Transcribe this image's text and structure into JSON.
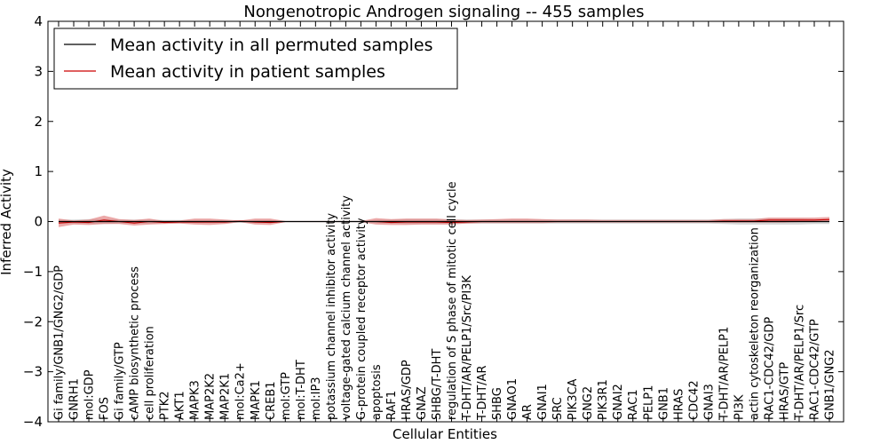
{
  "chart_data": {
    "type": "line",
    "title": "Nongenotropic Androgen signaling -- 455 samples",
    "xlabel": "Cellular Entities",
    "ylabel": "Inferred Activity",
    "ylim": [
      -4,
      4
    ],
    "yticks": [
      4,
      3,
      2,
      1,
      0,
      -1,
      -2,
      -3,
      -4
    ],
    "ytick_labels": [
      "4",
      "3",
      "2",
      "1",
      "0",
      "−1",
      "−2",
      "−3",
      "−4"
    ],
    "grid": false,
    "legend_position": "top-left",
    "categories": [
      "Gi family/GNB1/GNG2/GDP",
      "GNRH1",
      "mol:GDP",
      "FOS",
      "Gi family/GTP",
      "cAMP biosynthetic process",
      "cell proliferation",
      "PTK2",
      "AKT1",
      "MAPK3",
      "MAP2K2",
      "MAP2K1",
      "mol:Ca2+",
      "MAPK1",
      "CREB1",
      "mol:GTP",
      "mol:T-DHT",
      "mol:IP3",
      "potassium channel inhibitor activity",
      "voltage-gated calcium channel activity",
      "G-protein coupled receptor activity",
      "apoptosis",
      "RAF1",
      "HRAS/GDP",
      "GNAZ",
      "SHBG/T-DHT",
      "regulation of S phase of mitotic cell cycle",
      "T-DHT/AR/PELP1/Src/PI3K",
      "T-DHT/AR",
      "SHBG",
      "GNAO1",
      "AR",
      "GNAI1",
      "SRC",
      "PIK3CA",
      "GNG2",
      "PIK3R1",
      "GNAI2",
      "RAC1",
      "PELP1",
      "GNB1",
      "HRAS",
      "CDC42",
      "GNAI3",
      "T-DHT/AR/PELP1",
      "PI3K",
      "actin cytoskeleton reorganization",
      "RAC1-CDC42/GDP",
      "HRAS/GTP",
      "T-DHT/AR/PELP1/Src",
      "RAC1-CDC42/GTP",
      "GNB1/GNG2"
    ],
    "series": [
      {
        "name": "Mean activity in all permuted samples",
        "color": "#000000",
        "values": [
          0.0,
          0.0,
          0.0,
          0.0,
          0.0,
          0.0,
          0.0,
          0.0,
          0.0,
          0.0,
          0.0,
          0.0,
          0.0,
          0.0,
          0.0,
          0.0,
          0.0,
          0.0,
          0.0,
          0.0,
          0.0,
          0.0,
          0.0,
          0.0,
          0.0,
          0.0,
          0.0,
          0.0,
          0.0,
          0.0,
          0.0,
          0.0,
          0.0,
          0.0,
          0.0,
          0.0,
          0.0,
          0.0,
          0.0,
          0.0,
          0.0,
          0.0,
          0.0,
          0.0,
          0.0,
          0.0,
          0.0,
          0.0,
          0.0,
          0.0,
          0.0,
          0.0
        ],
        "band_lower": [
          -0.04,
          -0.04,
          -0.05,
          -0.05,
          -0.04,
          -0.04,
          -0.04,
          -0.03,
          -0.03,
          -0.03,
          -0.03,
          -0.03,
          -0.02,
          -0.03,
          -0.03,
          -0.01,
          -0.01,
          -0.01,
          -0.01,
          -0.01,
          -0.01,
          -0.03,
          -0.04,
          -0.05,
          -0.05,
          -0.05,
          -0.05,
          -0.04,
          -0.04,
          -0.04,
          -0.04,
          -0.04,
          -0.04,
          -0.04,
          -0.04,
          -0.04,
          -0.04,
          -0.04,
          -0.04,
          -0.04,
          -0.04,
          -0.04,
          -0.04,
          -0.04,
          -0.05,
          -0.06,
          -0.06,
          -0.06,
          -0.06,
          -0.06,
          -0.05,
          -0.05
        ],
        "band_upper": [
          0.04,
          0.04,
          0.05,
          0.05,
          0.04,
          0.04,
          0.04,
          0.03,
          0.03,
          0.03,
          0.03,
          0.03,
          0.02,
          0.03,
          0.03,
          0.01,
          0.01,
          0.01,
          0.01,
          0.01,
          0.01,
          0.03,
          0.04,
          0.05,
          0.05,
          0.05,
          0.05,
          0.04,
          0.04,
          0.04,
          0.04,
          0.04,
          0.04,
          0.04,
          0.04,
          0.04,
          0.04,
          0.04,
          0.04,
          0.04,
          0.04,
          0.04,
          0.04,
          0.04,
          0.05,
          0.06,
          0.06,
          0.06,
          0.06,
          0.06,
          0.05,
          0.05
        ],
        "band_color": "#bbbbbb"
      },
      {
        "name": "Mean activity in patient samples",
        "color": "#cc0000",
        "values": [
          -0.03,
          -0.01,
          -0.02,
          0.03,
          0.0,
          -0.03,
          0.0,
          -0.02,
          -0.01,
          -0.01,
          -0.01,
          -0.01,
          0.01,
          -0.01,
          -0.02,
          0.0,
          0.0,
          0.0,
          0.0,
          0.0,
          0.0,
          0.0,
          -0.02,
          -0.01,
          -0.01,
          -0.01,
          -0.02,
          -0.01,
          0.0,
          0.0,
          0.0,
          0.0,
          0.0,
          0.0,
          0.0,
          0.0,
          0.0,
          0.0,
          0.0,
          0.0,
          0.0,
          0.0,
          0.0,
          0.0,
          0.01,
          0.01,
          0.01,
          0.03,
          0.03,
          0.03,
          0.03,
          0.04
        ],
        "band_lower": [
          -0.11,
          -0.06,
          -0.07,
          -0.05,
          -0.05,
          -0.08,
          -0.06,
          -0.05,
          -0.04,
          -0.06,
          -0.07,
          -0.05,
          -0.01,
          -0.06,
          -0.07,
          -0.01,
          -0.01,
          -0.01,
          -0.01,
          -0.01,
          -0.01,
          -0.06,
          -0.07,
          -0.07,
          -0.06,
          -0.06,
          -0.06,
          -0.04,
          -0.03,
          -0.03,
          -0.03,
          -0.03,
          -0.03,
          -0.02,
          -0.02,
          -0.02,
          -0.02,
          -0.02,
          -0.02,
          -0.02,
          -0.02,
          -0.02,
          -0.02,
          -0.02,
          -0.02,
          -0.02,
          -0.02,
          -0.02,
          -0.02,
          -0.01,
          -0.01,
          0.0
        ],
        "band_upper": [
          0.06,
          0.02,
          0.04,
          0.12,
          0.05,
          0.03,
          0.06,
          0.01,
          0.02,
          0.06,
          0.06,
          0.04,
          0.02,
          0.06,
          0.06,
          0.01,
          0.01,
          0.01,
          0.01,
          0.01,
          0.01,
          0.07,
          0.05,
          0.06,
          0.06,
          0.06,
          0.04,
          0.03,
          0.04,
          0.05,
          0.06,
          0.06,
          0.05,
          0.04,
          0.04,
          0.04,
          0.03,
          0.03,
          0.03,
          0.03,
          0.03,
          0.03,
          0.03,
          0.03,
          0.05,
          0.05,
          0.05,
          0.08,
          0.08,
          0.08,
          0.08,
          0.09
        ],
        "band_color": "#e07070"
      }
    ]
  }
}
